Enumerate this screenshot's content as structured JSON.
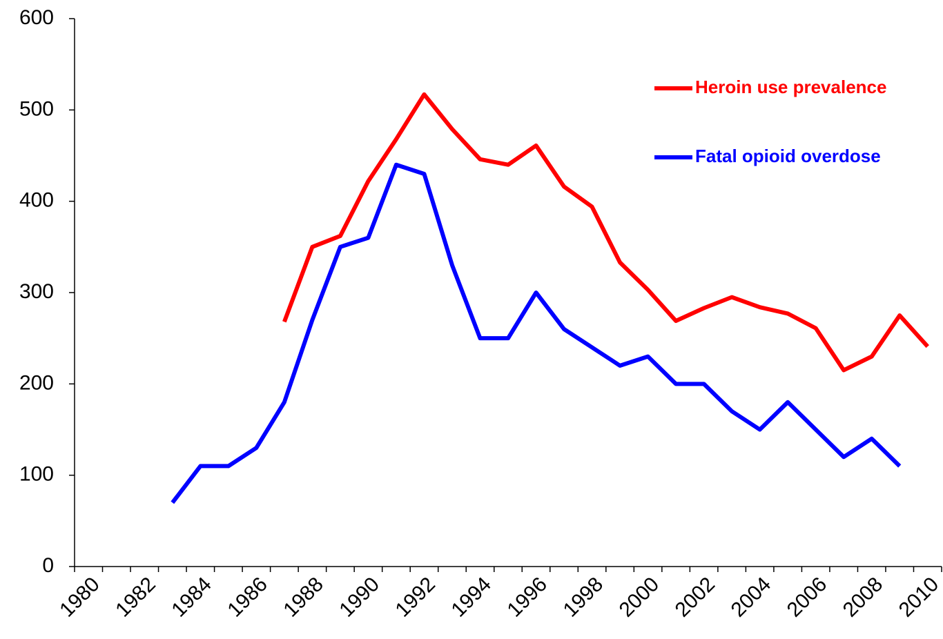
{
  "chart_data": {
    "type": "line",
    "categories": [
      "1980",
      null,
      "1982",
      null,
      "1984",
      null,
      "1986",
      null,
      "1988",
      null,
      "1990",
      null,
      "1992",
      null,
      "1994",
      null,
      "1996",
      null,
      "1998",
      null,
      "2000",
      null,
      "2002",
      null,
      "2004",
      null,
      "2006",
      null,
      "2008",
      null,
      "2010"
    ],
    "series": [
      {
        "name": "Heroin use prevalence",
        "color": "#ff0000",
        "values": [
          null,
          null,
          null,
          null,
          null,
          null,
          null,
          268,
          350,
          362,
          422,
          468,
          517,
          479,
          446,
          440,
          461,
          416,
          394,
          333,
          303,
          269,
          283,
          295,
          284,
          277,
          261,
          215,
          230,
          275,
          241
        ]
      },
      {
        "name": "Fatal opioid overdose",
        "color": "#0000ff",
        "values": [
          null,
          null,
          null,
          70,
          110,
          110,
          130,
          180,
          270,
          350,
          360,
          440,
          430,
          330,
          250,
          250,
          300,
          260,
          240,
          220,
          230,
          200,
          200,
          170,
          150,
          180,
          150,
          120,
          140,
          110,
          null
        ]
      }
    ],
    "ylim": [
      0,
      600
    ],
    "yticks": [
      0,
      100,
      200,
      300,
      400,
      500,
      600
    ],
    "grid": false,
    "legend": "upper right"
  }
}
